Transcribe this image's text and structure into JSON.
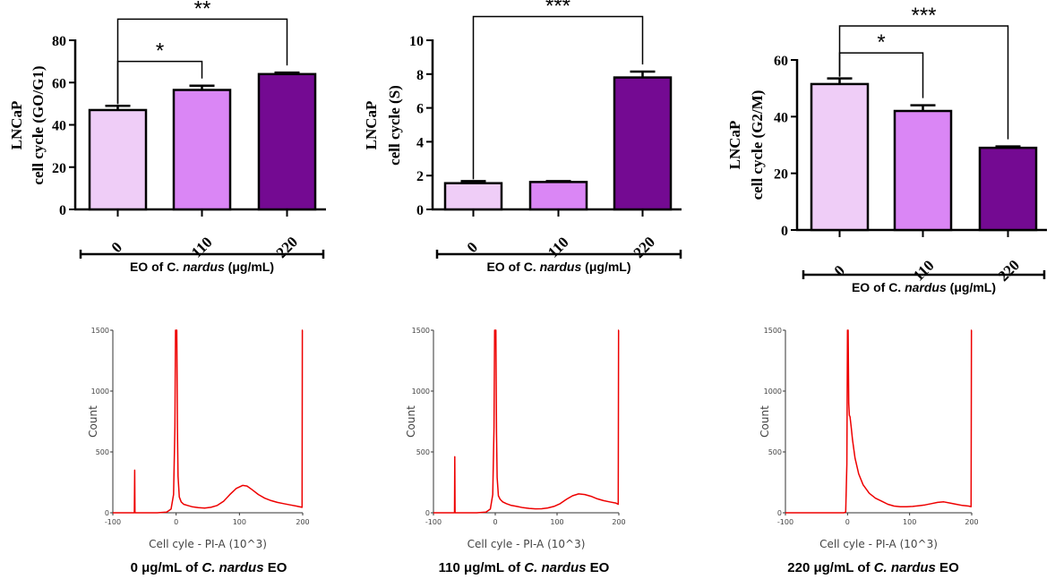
{
  "colors": {
    "c0": "#EFCDF7",
    "c110": "#DA86F5",
    "c220": "#740A92",
    "hist": "#EE0000"
  },
  "chart_data": [
    {
      "type": "bar",
      "ylabel_line1": "LNCaP",
      "ylabel_line2": "cell cycle (GO/G1)",
      "xlabel_prefix": "EO of C. ",
      "xlabel_italic": "nardus",
      "xlabel_suffix": " (μg/mL)",
      "categories": [
        "0",
        "110",
        "220"
      ],
      "values": [
        47,
        56.5,
        64
      ],
      "errors": [
        2,
        2,
        0.7
      ],
      "ylim": [
        0,
        80
      ],
      "yticks": [
        0,
        20,
        40,
        60,
        80
      ],
      "significance": [
        {
          "from": 0,
          "to": 1,
          "label": "*",
          "level": 70
        },
        {
          "from": 0,
          "to": 2,
          "label": "**",
          "level": 90
        }
      ]
    },
    {
      "type": "bar",
      "ylabel_line1": "LNCaP",
      "ylabel_line2": "cell cycle (S)",
      "xlabel_prefix": "EO of C. ",
      "xlabel_italic": "nardus",
      "xlabel_suffix": " (μg/mL)",
      "categories": [
        "0",
        "110",
        "220"
      ],
      "values": [
        1.55,
        1.62,
        7.8
      ],
      "errors": [
        0.12,
        0.05,
        0.35
      ],
      "ylim": [
        0,
        10
      ],
      "yticks": [
        0,
        2,
        4,
        6,
        8,
        10
      ],
      "significance": [
        {
          "from": 0,
          "to": 2,
          "label": "***",
          "level": 11.4
        }
      ]
    },
    {
      "type": "bar",
      "ylabel_line1": "LNCaP",
      "ylabel_line2": "cell cycle (G2/M)",
      "xlabel_prefix": "EO of C. ",
      "xlabel_italic": "nardus",
      "xlabel_suffix": " (μg/mL)",
      "categories": [
        "0",
        "110",
        "220"
      ],
      "values": [
        51.5,
        42,
        29
      ],
      "errors": [
        2,
        2,
        0.5
      ],
      "ylim": [
        0,
        60
      ],
      "yticks": [
        0,
        20,
        40,
        60
      ],
      "significance": [
        {
          "from": 0,
          "to": 1,
          "label": "*",
          "level": 62.5
        },
        {
          "from": 0,
          "to": 2,
          "label": "***",
          "level": 72
        }
      ]
    },
    {
      "type": "line",
      "xlabel": "Cell cyle - PI-A (10^3)",
      "ylabel": "Count",
      "xlim": [
        -100,
        200
      ],
      "ylim": [
        0,
        1500
      ],
      "xticks": [
        -100,
        0,
        100,
        200
      ],
      "yticks": [
        0,
        500,
        1000,
        1500
      ],
      "x": [
        -100,
        -66,
        -65.5,
        -65,
        -64,
        -30,
        -15,
        -8,
        -4,
        -2,
        -1,
        0,
        1,
        2,
        3,
        5,
        8,
        12,
        18,
        25,
        35,
        45,
        55,
        65,
        75,
        85,
        95,
        105,
        112,
        120,
        130,
        140,
        150,
        160,
        170,
        180,
        190,
        199,
        199.5,
        200
      ],
      "y": [
        0,
        0,
        350,
        0,
        0,
        0,
        5,
        30,
        150,
        700,
        1500,
        1500,
        1500,
        700,
        300,
        130,
        90,
        70,
        60,
        50,
        42,
        38,
        45,
        60,
        95,
        150,
        200,
        225,
        220,
        190,
        150,
        120,
        100,
        85,
        75,
        65,
        55,
        45,
        1500,
        1500
      ]
    },
    {
      "type": "line",
      "xlabel": "Cell cyle - PI-A (10^3)",
      "ylabel": "Count",
      "xlim": [
        -100,
        200
      ],
      "ylim": [
        0,
        1500
      ],
      "xticks": [
        -100,
        0,
        100,
        200
      ],
      "yticks": [
        0,
        500,
        1000,
        1500
      ],
      "x": [
        -100,
        -66,
        -65.5,
        -65,
        -64,
        -30,
        -15,
        -8,
        -4,
        -2,
        -1,
        0,
        1,
        2,
        3,
        5,
        8,
        12,
        18,
        25,
        35,
        45,
        55,
        65,
        75,
        85,
        95,
        105,
        115,
        125,
        135,
        145,
        155,
        165,
        175,
        185,
        195,
        199,
        199.5,
        200
      ],
      "y": [
        0,
        0,
        460,
        0,
        0,
        0,
        5,
        30,
        150,
        700,
        1500,
        1500,
        1500,
        650,
        290,
        140,
        110,
        90,
        75,
        62,
        52,
        42,
        36,
        32,
        33,
        40,
        52,
        75,
        110,
        140,
        155,
        150,
        135,
        115,
        100,
        90,
        80,
        70,
        1500,
        1500
      ]
    },
    {
      "type": "line",
      "xlabel": "Cell cyle - PI-A (10^3)",
      "ylabel": "Count",
      "xlim": [
        -100,
        200
      ],
      "ylim": [
        0,
        1500
      ],
      "xticks": [
        -100,
        0,
        100,
        200
      ],
      "yticks": [
        0,
        500,
        1000,
        1500
      ],
      "x": [
        -100,
        -30,
        -6,
        -3,
        -1,
        0,
        1,
        2,
        3,
        4,
        6,
        8,
        12,
        18,
        25,
        35,
        45,
        55,
        65,
        75,
        85,
        95,
        105,
        115,
        125,
        135,
        145,
        155,
        165,
        175,
        185,
        195,
        199,
        199.5,
        200
      ],
      "y": [
        0,
        0,
        0,
        5,
        400,
        1500,
        1500,
        900,
        800,
        790,
        700,
        600,
        450,
        320,
        230,
        160,
        120,
        95,
        70,
        55,
        50,
        50,
        52,
        58,
        65,
        75,
        85,
        90,
        80,
        70,
        60,
        55,
        50,
        1500,
        1500
      ]
    }
  ],
  "captions": [
    {
      "prefix": "0 μg/mL of ",
      "italic": "C. nardus",
      "suffix": " EO"
    },
    {
      "prefix": "110 μg/mL of ",
      "italic": "C. nardus",
      "suffix": " EO"
    },
    {
      "prefix": "220 μg/mL of ",
      "italic": "C. nardus",
      "suffix": " EO"
    }
  ]
}
